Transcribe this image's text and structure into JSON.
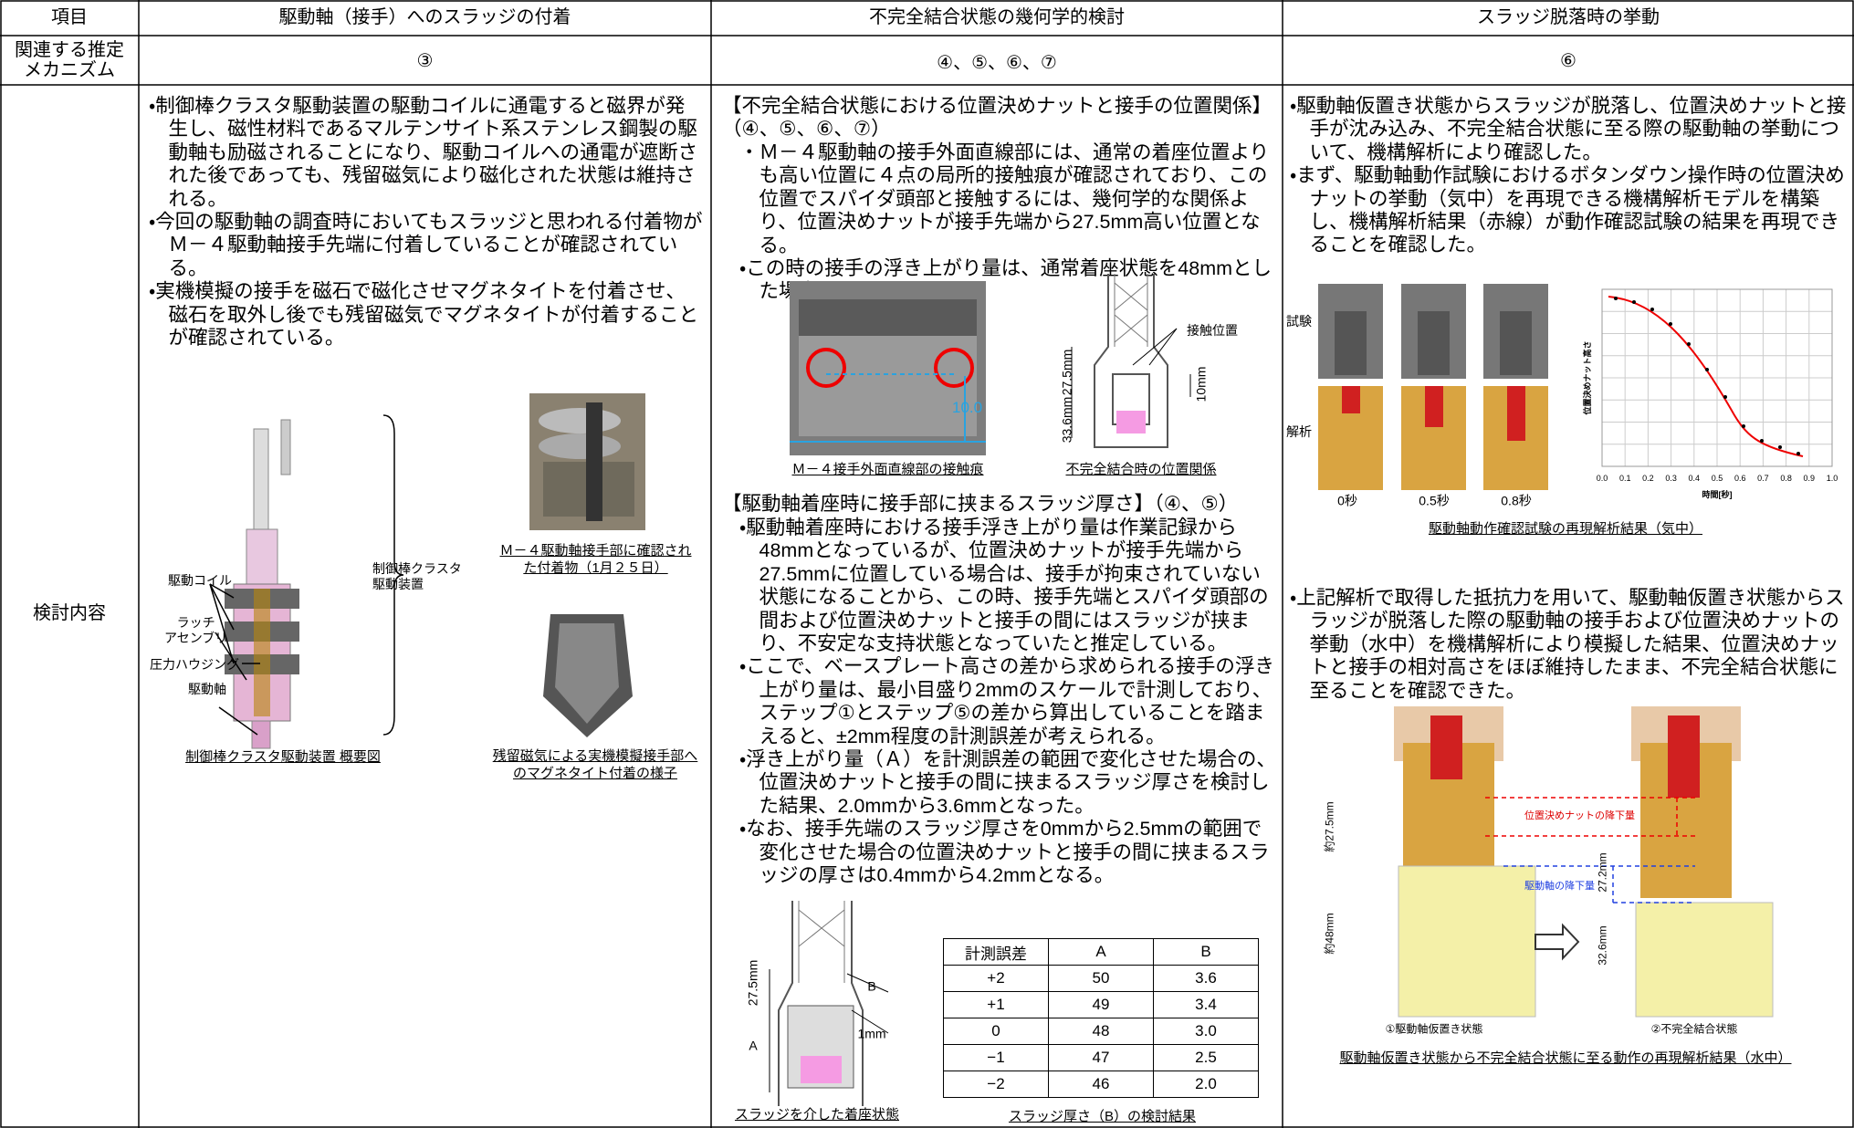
{
  "table": {
    "header": [
      "項目",
      "駆動軸（接手）へのスラッジの付着",
      "不完全結合状態の幾何学的検討",
      "スラッジ脱落時の挙動"
    ],
    "mechanism": {
      "label": "関連する推定\nメカニズム",
      "values": [
        "③",
        "④、⑤、⑥、⑦",
        "⑥"
      ]
    },
    "content_label": "検討内容"
  },
  "sludge_adhesion": {
    "bullets": [
      "・制御棒クラスタ駆動装置の駆動コイルに通電すると磁界が発生し、磁性材料であるマルテンサイト系ステンレス鋼製の駆動軸も励磁されることになり、駆動コイルへの通電が遮断された後であっても、残留磁気により磁化された状態は維持される。",
      "・今回の駆動軸の調査時においてもスラッジと思われる付着物がＭ－４駆動軸接手先端に付着していることが確認されている。",
      "・実機模擬の接手を磁石で磁化させマグネタイトを付着させ、磁石を取外し後でも残留磁気でマグネタイトが付着することが確認されている。"
    ],
    "figure_labels": [
      "駆動コイル",
      "ラッチ\nアセンブリ",
      "圧力ハウジング",
      "駆動軸",
      "制御棒クラスタ\n駆動装置"
    ],
    "captions": [
      "制御棒クラスタ駆動装置 概要図",
      "Ｍ－４駆動軸接手部に確認された付着物（1月２５日）",
      "残留磁気による実機模擬接手部へのマグネタイト付着の様子"
    ]
  },
  "geometry": {
    "heading1": "【不完全結合状態における位置決めナットと接手の位置関係】（④、⑤、⑥、⑦）",
    "bullets1": [
      "・Ｍ－４駆動軸の接手外面直線部には、通常の着座位置よりも高い位置に４点の局所的接触痕が確認されており、この位置でスパイダ頭部と接触するには、幾何学的な関係より、位置決めナットが接手先端から27.5mm高い位置となる。",
      "・この時の接手の浮き上がり量は、通常着座状態を48mmとした場合、33.6mmとなる。"
    ],
    "figure1_labels": [
      "10.0"
    ],
    "figure2_labels": [
      "接触位置",
      "27.5mm",
      "33.6mm",
      "10mm"
    ],
    "captions1": [
      "Ｍ－４接手外面直線部の接触痕",
      "不完全結合時の位置関係"
    ],
    "heading2": "【駆動軸着座時に接手部に挟まるスラッジ厚さ】（④、⑤）",
    "bullets2": [
      "・駆動軸着座時における接手浮き上がり量は作業記録から48mmとなっているが、位置決めナットが接手先端から27.5mmに位置している場合は、接手が拘束されていない状態になることから、この時、接手先端とスパイダ頭部の間および位置決めナットと接手の間にはスラッジが挟まり、不安定な支持状態となっていたと推定している。",
      "・ここで、ベースプレート高さの差から求められる接手の浮き上がり量は、最小目盛り2mmのスケールで計測しており、ステップ①とステップ⑤の差から算出していることを踏まえると、±2mm程度の計測誤差が考えられる。",
      "・浮き上がり量（Ａ）を計測誤差の範囲で変化させた場合の、位置決めナットと接手の間に挟まるスラッジ厚さを検討した結果、2.0mmから3.6mmとなった。",
      "・なお、接手先端のスラッジ厚さを0mmから2.5mmの範囲で変化させた場合の位置決めナットと接手の間に挟まるスラッジの厚さは0.4mmから4.2mmとなる。"
    ],
    "figure3_labels": [
      "27.5mm",
      "A",
      "B",
      "1mm"
    ],
    "result_table": {
      "header": [
        "計測誤差",
        "A",
        "B"
      ],
      "rows": [
        [
          "+2",
          "50",
          "3.6"
        ],
        [
          "+1",
          "49",
          "3.4"
        ],
        [
          "0",
          "48",
          "3.0"
        ],
        [
          "−1",
          "47",
          "2.5"
        ],
        [
          "−2",
          "46",
          "2.0"
        ]
      ]
    },
    "captions2": [
      "スラッジを介した着座状態",
      "スラッジ厚さ（B）の検討結果"
    ]
  },
  "sludge_drop": {
    "bullets1": [
      "・駆動軸仮置き状態からスラッジが脱落し、位置決めナットと接手が沈み込み、不完全結合状態に至る際の駆動軸の挙動について、機構解析により確認した。",
      "・まず、駆動軸動作試験におけるボタンダウン操作時の位置決めナットの挙動（気中）を再現できる機構解析モデルを構築し、機構解析結果（赤線）が動作確認試験の結果を再現できることを確認した。"
    ],
    "figure1_labels": [
      "試験",
      "解析",
      "0秒",
      "0.5秒",
      "0.8秒"
    ],
    "chart": {
      "ylabel": "位置決めナット高さ",
      "xlabel": "時間[秒]",
      "xticks": [
        "0.0",
        "0.1",
        "0.2",
        "0.3",
        "0.4",
        "0.5",
        "0.6",
        "0.7",
        "0.8",
        "0.9",
        "1.0"
      ]
    },
    "caption1": "駆動軸動作確認試験の再現解析結果（気中）",
    "bullets2": [
      "・上記解析で取得した抵抗力を用いて、駆動軸仮置き状態からスラッジが脱落した際の駆動軸の接手および位置決めナットの挙動（水中）を機構解析により模擬した結果、位置決めナットと接手の相対高さをほぼ維持したまま、不完全結合状態に至ることを確認できた。"
    ],
    "figure2_labels": [
      "位置決めナットの降下量",
      "駆動軸の降下量",
      "約27.5mm",
      "約48mm",
      "27.2mm",
      "32.6mm",
      "①駆動軸仮置き状態",
      "②不完全結合状態"
    ],
    "caption2": "駆動軸仮置き状態から不完全結合状態に至る動作の再現解析結果（水中）"
  }
}
